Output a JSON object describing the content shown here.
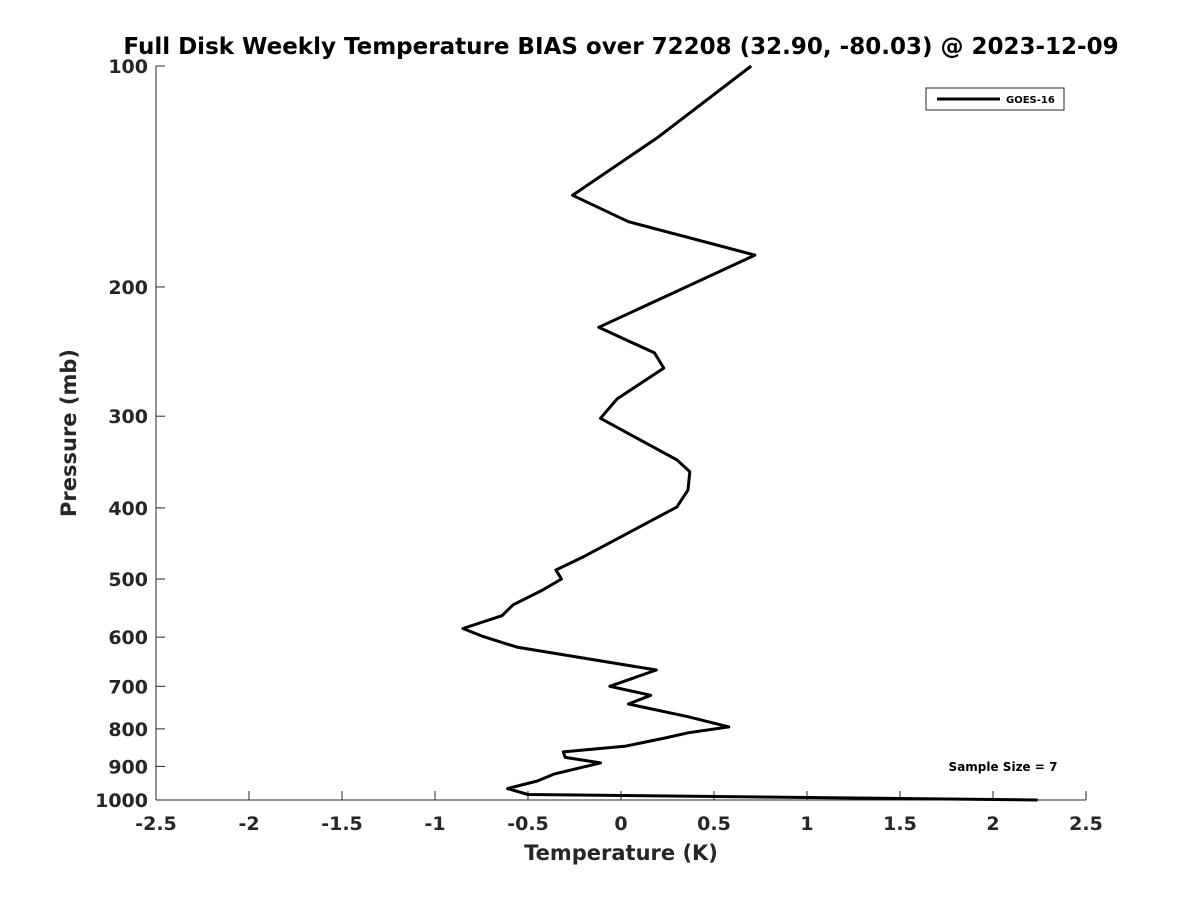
{
  "chart_data": {
    "type": "line",
    "title": "Full Disk Weekly Temperature BIAS over 72208 (32.90, -80.03) @ 2023-12-09",
    "xlabel": "Temperature (K)",
    "ylabel": "Pressure (mb)",
    "xlim": [
      -2.5,
      2.5
    ],
    "ylim": [
      100,
      1000
    ],
    "yscale": "log",
    "y_reversed": true,
    "x_ticks": [
      "-2.5",
      "-2",
      "-1.5",
      "-1",
      "-0.5",
      "0",
      "0.5",
      "1",
      "1.5",
      "2",
      "2.5"
    ],
    "x_tick_values": [
      -2.5,
      -2,
      -1.5,
      -1,
      -0.5,
      0,
      0.5,
      1,
      1.5,
      2,
      2.5
    ],
    "y_ticks": [
      "100",
      "200",
      "300",
      "400",
      "500",
      "600",
      "700",
      "800",
      "900",
      "1000"
    ],
    "y_tick_values": [
      100,
      200,
      300,
      400,
      500,
      600,
      700,
      800,
      900,
      1000
    ],
    "legend_position": "top-right",
    "grid": false,
    "series": [
      {
        "name": "GOES-16",
        "color": "#000000",
        "points": [
          {
            "x": 0.7,
            "y": 100
          },
          {
            "x": 0.2,
            "y": 125
          },
          {
            "x": -0.26,
            "y": 150
          },
          {
            "x": 0.04,
            "y": 163
          },
          {
            "x": 0.72,
            "y": 181
          },
          {
            "x": 0.35,
            "y": 200
          },
          {
            "x": -0.12,
            "y": 227
          },
          {
            "x": 0.18,
            "y": 246
          },
          {
            "x": 0.23,
            "y": 258
          },
          {
            "x": -0.02,
            "y": 284
          },
          {
            "x": -0.11,
            "y": 302
          },
          {
            "x": 0.15,
            "y": 328
          },
          {
            "x": 0.3,
            "y": 344
          },
          {
            "x": 0.37,
            "y": 357
          },
          {
            "x": 0.36,
            "y": 378
          },
          {
            "x": 0.3,
            "y": 399
          },
          {
            "x": 0.0,
            "y": 438
          },
          {
            "x": -0.2,
            "y": 466
          },
          {
            "x": -0.35,
            "y": 486
          },
          {
            "x": -0.32,
            "y": 500
          },
          {
            "x": -0.43,
            "y": 519
          },
          {
            "x": -0.58,
            "y": 542
          },
          {
            "x": -0.64,
            "y": 561
          },
          {
            "x": -0.85,
            "y": 584
          },
          {
            "x": -0.74,
            "y": 599
          },
          {
            "x": -0.56,
            "y": 619
          },
          {
            "x": 0.19,
            "y": 665
          },
          {
            "x": -0.06,
            "y": 700
          },
          {
            "x": 0.16,
            "y": 720
          },
          {
            "x": 0.04,
            "y": 740
          },
          {
            "x": 0.36,
            "y": 770
          },
          {
            "x": 0.58,
            "y": 795
          },
          {
            "x": 0.36,
            "y": 810
          },
          {
            "x": 0.24,
            "y": 823
          },
          {
            "x": 0.02,
            "y": 845
          },
          {
            "x": -0.31,
            "y": 860
          },
          {
            "x": -0.3,
            "y": 875
          },
          {
            "x": -0.11,
            "y": 890
          },
          {
            "x": -0.36,
            "y": 922
          },
          {
            "x": -0.45,
            "y": 942
          },
          {
            "x": -0.61,
            "y": 965
          },
          {
            "x": -0.5,
            "y": 983
          },
          {
            "x": 2.24,
            "y": 1000
          }
        ]
      }
    ],
    "annotation": "Sample Size = 7"
  }
}
